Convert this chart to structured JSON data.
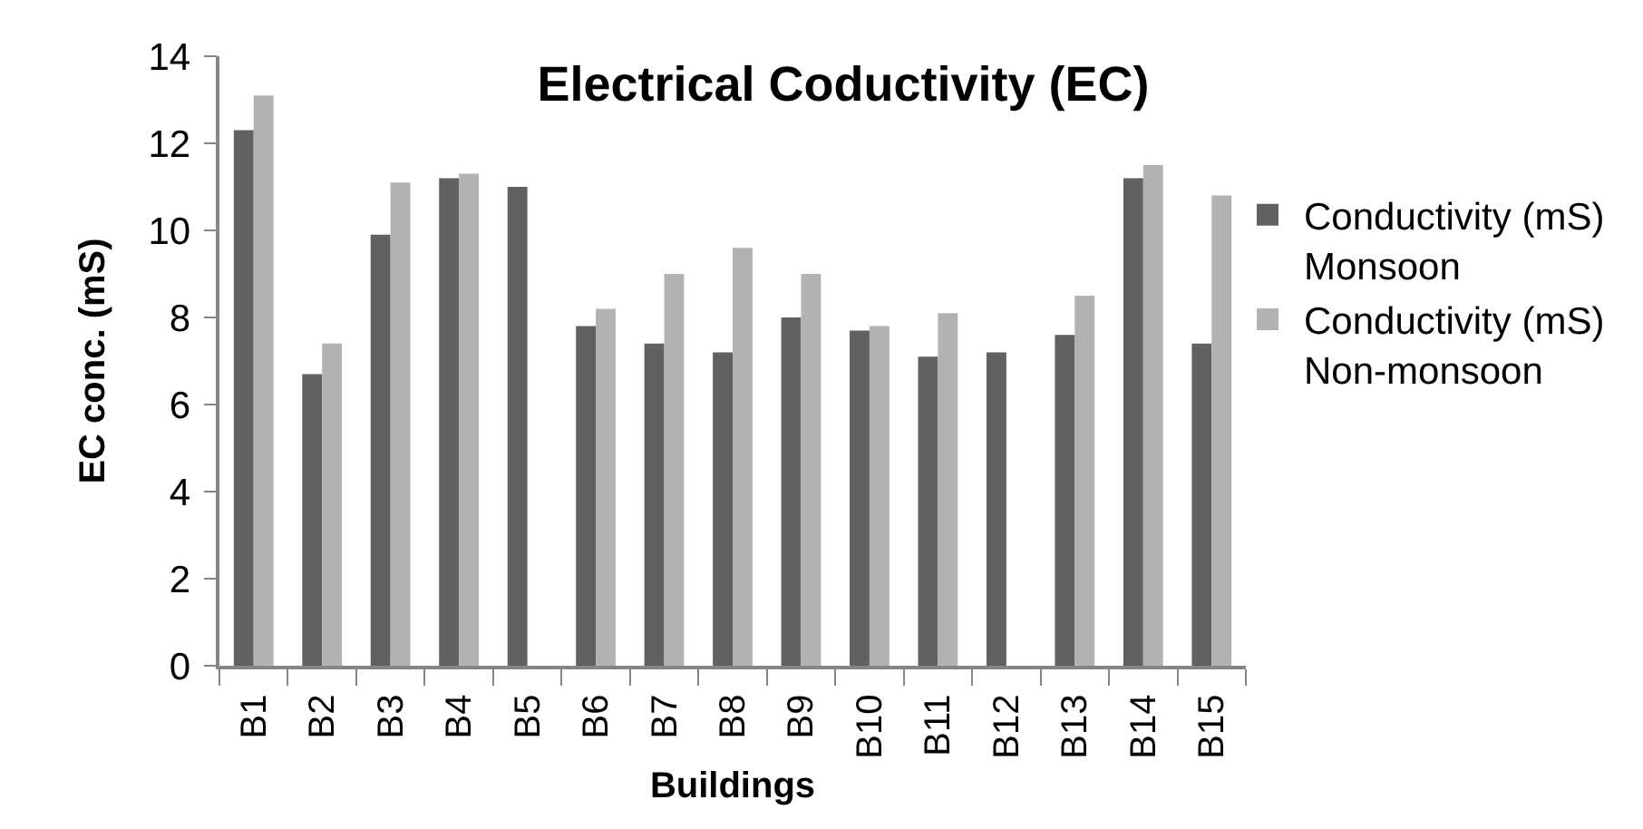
{
  "chart_data": {
    "type": "bar",
    "title": "Electrical Coductivity (EC)",
    "xlabel": "Buildings",
    "ylabel": "EC conc. (mS)",
    "categories": [
      "B1",
      "B2",
      "B3",
      "B4",
      "B5",
      "B6",
      "B7",
      "B8",
      "B9",
      "B10",
      "B11",
      "B12",
      "B13",
      "B14",
      "B15"
    ],
    "series": [
      {
        "name": "Conductivity (mS) Monsoon",
        "color": "#616161",
        "values": [
          12.3,
          6.7,
          9.9,
          11.2,
          11.0,
          7.8,
          7.4,
          7.2,
          8.0,
          7.7,
          7.1,
          7.2,
          7.6,
          11.2,
          7.4
        ]
      },
      {
        "name": "Conductivity (mS) Non-monsoon",
        "color": "#b2b2b2",
        "values": [
          13.1,
          7.4,
          11.1,
          11.3,
          null,
          8.2,
          9.0,
          9.6,
          9.0,
          7.8,
          8.1,
          null,
          8.5,
          11.5,
          10.8
        ]
      }
    ],
    "ylim": [
      0,
      14
    ],
    "yticks": [
      0,
      2,
      4,
      6,
      8,
      10,
      12,
      14
    ],
    "legend": "right"
  }
}
